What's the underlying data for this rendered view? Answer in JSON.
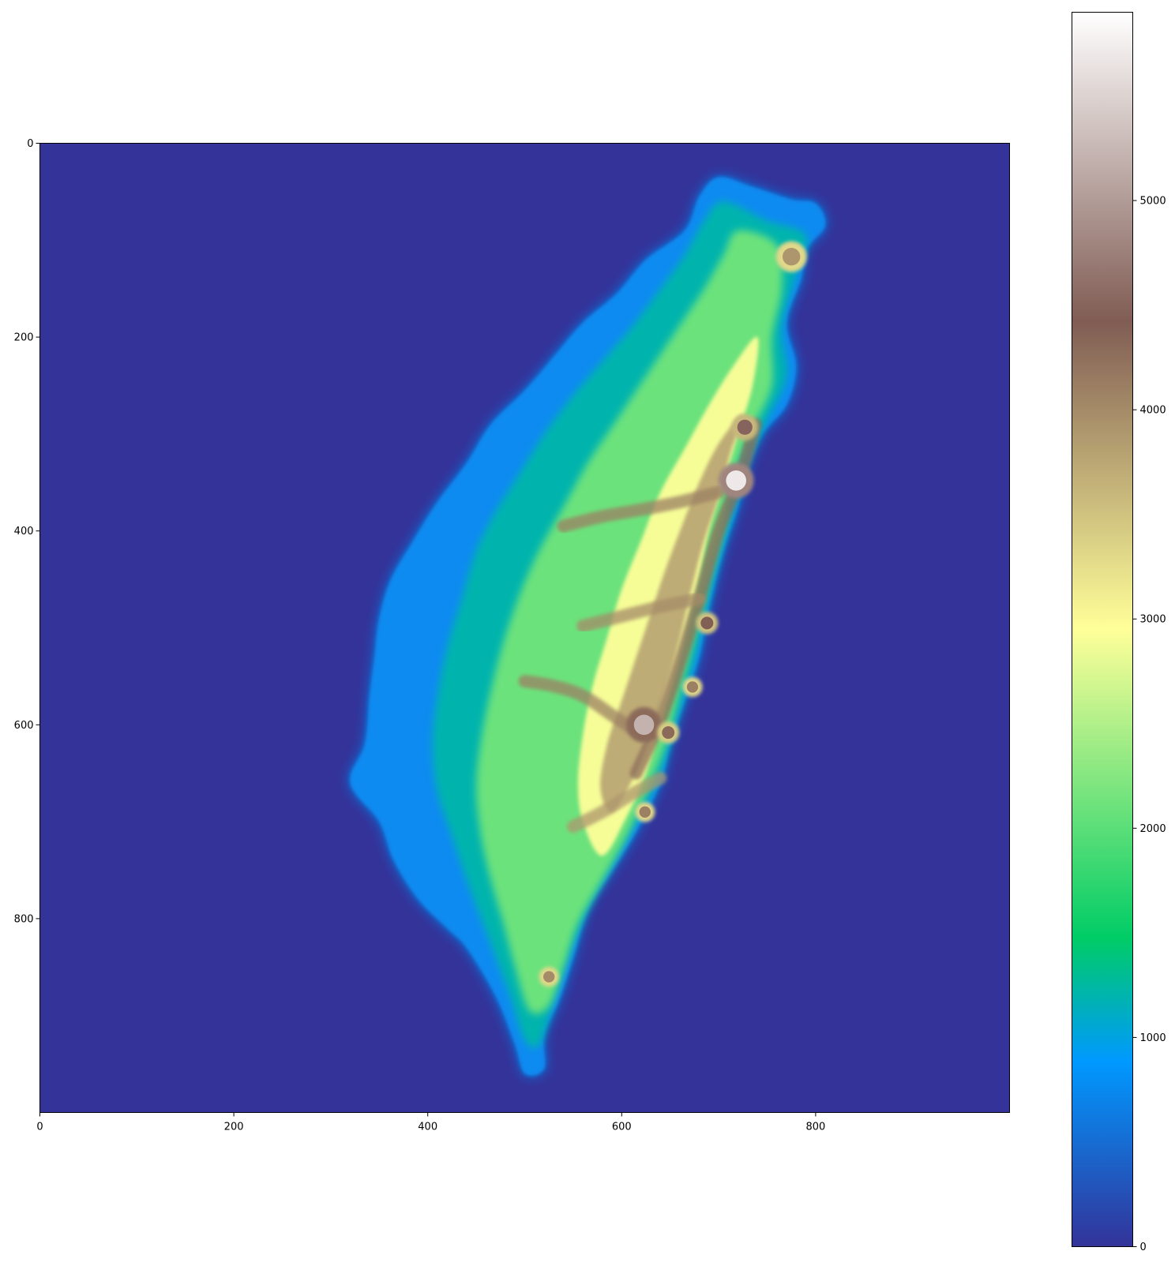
{
  "chart_data": {
    "type": "heatmap",
    "title": "",
    "xlabel": "",
    "ylabel": "",
    "xlim": [
      0,
      1000
    ],
    "ylim": [
      1000,
      0
    ],
    "xticks": [
      {
        "value": 0,
        "label": "0"
      },
      {
        "value": 200,
        "label": "200"
      },
      {
        "value": 400,
        "label": "400"
      },
      {
        "value": 600,
        "label": "600"
      },
      {
        "value": 800,
        "label": "800"
      }
    ],
    "yticks": [
      {
        "value": 0,
        "label": "0"
      },
      {
        "value": 200,
        "label": "200"
      },
      {
        "value": 400,
        "label": "400"
      },
      {
        "value": 600,
        "label": "600"
      },
      {
        "value": 800,
        "label": "800"
      }
    ],
    "grid": false,
    "colormap": "terrain",
    "background_color": "#333399",
    "colorbar": {
      "range": [
        0,
        5900
      ],
      "ticks": [
        {
          "value": 0,
          "label": "0"
        },
        {
          "value": 1000,
          "label": "1000"
        },
        {
          "value": 2000,
          "label": "2000"
        },
        {
          "value": 3000,
          "label": "3000"
        },
        {
          "value": 4000,
          "label": "4000"
        },
        {
          "value": 5000,
          "label": "5000"
        }
      ],
      "stops": [
        {
          "value": 0,
          "color": "#333399"
        },
        {
          "value": 885,
          "color": "#0099ff"
        },
        {
          "value": 1475,
          "color": "#00cc66"
        },
        {
          "value": 2950,
          "color": "#ffff99"
        },
        {
          "value": 4425,
          "color": "#805c54"
        },
        {
          "value": 5900,
          "color": "#ffffff"
        }
      ]
    },
    "land_outline": [
      [
        700,
        35
      ],
      [
        735,
        45
      ],
      [
        775,
        58
      ],
      [
        800,
        62
      ],
      [
        810,
        85
      ],
      [
        790,
        110
      ],
      [
        785,
        140
      ],
      [
        770,
        185
      ],
      [
        780,
        230
      ],
      [
        770,
        270
      ],
      [
        745,
        300
      ],
      [
        730,
        335
      ],
      [
        720,
        375
      ],
      [
        705,
        420
      ],
      [
        690,
        480
      ],
      [
        680,
        530
      ],
      [
        670,
        560
      ],
      [
        650,
        620
      ],
      [
        640,
        660
      ],
      [
        615,
        710
      ],
      [
        590,
        750
      ],
      [
        565,
        790
      ],
      [
        550,
        840
      ],
      [
        535,
        885
      ],
      [
        520,
        920
      ],
      [
        520,
        955
      ],
      [
        500,
        960
      ],
      [
        490,
        930
      ],
      [
        470,
        880
      ],
      [
        440,
        830
      ],
      [
        420,
        810
      ],
      [
        390,
        780
      ],
      [
        365,
        740
      ],
      [
        350,
        700
      ],
      [
        320,
        660
      ],
      [
        335,
        620
      ],
      [
        340,
        570
      ],
      [
        345,
        530
      ],
      [
        350,
        490
      ],
      [
        362,
        450
      ],
      [
        385,
        410
      ],
      [
        410,
        370
      ],
      [
        440,
        330
      ],
      [
        465,
        290
      ],
      [
        500,
        255
      ],
      [
        530,
        220
      ],
      [
        560,
        185
      ],
      [
        595,
        155
      ],
      [
        625,
        120
      ],
      [
        665,
        90
      ],
      [
        680,
        55
      ]
    ],
    "elevation_zones": [
      {
        "elevation": 1200,
        "points": [
          [
            705,
            60
          ],
          [
            750,
            80
          ],
          [
            790,
            95
          ],
          [
            780,
            135
          ],
          [
            765,
            190
          ],
          [
            770,
            240
          ],
          [
            750,
            285
          ],
          [
            730,
            330
          ],
          [
            715,
            380
          ],
          [
            700,
            430
          ],
          [
            685,
            490
          ],
          [
            672,
            545
          ],
          [
            655,
            600
          ],
          [
            640,
            650
          ],
          [
            615,
            700
          ],
          [
            590,
            745
          ],
          [
            565,
            790
          ],
          [
            545,
            840
          ],
          [
            530,
            885
          ],
          [
            515,
            930
          ],
          [
            500,
            925
          ],
          [
            485,
            880
          ],
          [
            470,
            840
          ],
          [
            455,
            800
          ],
          [
            440,
            760
          ],
          [
            425,
            715
          ],
          [
            410,
            670
          ],
          [
            405,
            620
          ],
          [
            410,
            570
          ],
          [
            420,
            520
          ],
          [
            435,
            470
          ],
          [
            450,
            420
          ],
          [
            470,
            380
          ],
          [
            495,
            340
          ],
          [
            520,
            300
          ],
          [
            550,
            260
          ],
          [
            580,
            225
          ],
          [
            610,
            190
          ],
          [
            640,
            150
          ],
          [
            665,
            115
          ],
          [
            685,
            80
          ]
        ]
      },
      {
        "elevation": 2100,
        "points": [
          [
            720,
            90
          ],
          [
            760,
            105
          ],
          [
            765,
            150
          ],
          [
            755,
            200
          ],
          [
            755,
            250
          ],
          [
            735,
            295
          ],
          [
            715,
            345
          ],
          [
            705,
            395
          ],
          [
            690,
            450
          ],
          [
            675,
            510
          ],
          [
            660,
            565
          ],
          [
            645,
            620
          ],
          [
            625,
            670
          ],
          [
            605,
            715
          ],
          [
            580,
            760
          ],
          [
            555,
            805
          ],
          [
            540,
            850
          ],
          [
            525,
            890
          ],
          [
            505,
            895
          ],
          [
            490,
            850
          ],
          [
            478,
            805
          ],
          [
            465,
            760
          ],
          [
            455,
            715
          ],
          [
            450,
            665
          ],
          [
            455,
            615
          ],
          [
            465,
            565
          ],
          [
            478,
            515
          ],
          [
            495,
            465
          ],
          [
            515,
            420
          ],
          [
            540,
            375
          ],
          [
            565,
            330
          ],
          [
            595,
            285
          ],
          [
            625,
            240
          ],
          [
            655,
            195
          ],
          [
            685,
            150
          ],
          [
            705,
            115
          ]
        ]
      },
      {
        "elevation": 2900,
        "points": [
          [
            740,
            200
          ],
          [
            735,
            250
          ],
          [
            720,
            300
          ],
          [
            705,
            350
          ],
          [
            690,
            400
          ],
          [
            680,
            450
          ],
          [
            668,
            500
          ],
          [
            655,
            550
          ],
          [
            640,
            600
          ],
          [
            625,
            650
          ],
          [
            605,
            695
          ],
          [
            580,
            735
          ],
          [
            560,
            700
          ],
          [
            555,
            660
          ],
          [
            560,
            610
          ],
          [
            570,
            560
          ],
          [
            585,
            510
          ],
          [
            600,
            460
          ],
          [
            620,
            410
          ],
          [
            640,
            360
          ],
          [
            665,
            315
          ],
          [
            690,
            270
          ],
          [
            715,
            230
          ]
        ]
      },
      {
        "elevation": 3700,
        "points": [
          [
            725,
            280
          ],
          [
            712,
            320
          ],
          [
            700,
            365
          ],
          [
            685,
            410
          ],
          [
            672,
            460
          ],
          [
            660,
            510
          ],
          [
            646,
            560
          ],
          [
            630,
            610
          ],
          [
            612,
            655
          ],
          [
            590,
            690
          ],
          [
            578,
            665
          ],
          [
            585,
            620
          ],
          [
            600,
            575
          ],
          [
            615,
            530
          ],
          [
            630,
            485
          ],
          [
            645,
            440
          ],
          [
            662,
            395
          ],
          [
            680,
            350
          ],
          [
            700,
            310
          ]
        ]
      }
    ],
    "ridges": [
      {
        "elevation": 4300,
        "points": [
          [
            738,
            290
          ],
          [
            722,
            345
          ],
          [
            700,
            400
          ],
          [
            680,
            470
          ],
          [
            662,
            530
          ],
          [
            640,
            595
          ],
          [
            615,
            650
          ]
        ]
      },
      {
        "elevation": 4100,
        "points": [
          [
            620,
            610
          ],
          [
            590,
            590
          ],
          [
            560,
            570
          ],
          [
            530,
            560
          ],
          [
            500,
            555
          ]
        ]
      },
      {
        "elevation": 4100,
        "points": [
          [
            700,
            360
          ],
          [
            660,
            370
          ],
          [
            620,
            378
          ],
          [
            580,
            385
          ],
          [
            540,
            395
          ]
        ]
      },
      {
        "elevation": 4000,
        "points": [
          [
            680,
            470
          ],
          [
            640,
            478
          ],
          [
            600,
            488
          ],
          [
            560,
            498
          ]
        ]
      },
      {
        "elevation": 3900,
        "points": [
          [
            640,
            655
          ],
          [
            610,
            672
          ],
          [
            580,
            690
          ],
          [
            550,
            705
          ]
        ]
      }
    ],
    "peaks": [
      {
        "x": 718,
        "y": 348,
        "elevation": 5700,
        "r": 16
      },
      {
        "x": 727,
        "y": 293,
        "elevation": 4500,
        "r": 12
      },
      {
        "x": 775,
        "y": 117,
        "elevation": 3900,
        "r": 14
      },
      {
        "x": 688,
        "y": 495,
        "elevation": 4400,
        "r": 10
      },
      {
        "x": 673,
        "y": 561,
        "elevation": 4100,
        "r": 9
      },
      {
        "x": 623,
        "y": 600,
        "elevation": 5200,
        "r": 16
      },
      {
        "x": 648,
        "y": 608,
        "elevation": 4300,
        "r": 10
      },
      {
        "x": 624,
        "y": 690,
        "elevation": 4100,
        "r": 9
      },
      {
        "x": 525,
        "y": 860,
        "elevation": 4000,
        "r": 9
      }
    ]
  }
}
